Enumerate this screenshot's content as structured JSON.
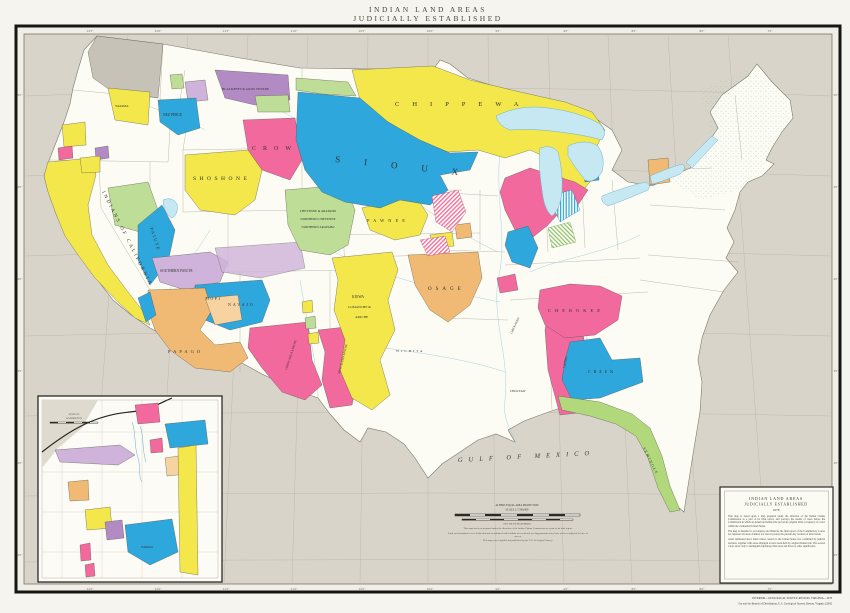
{
  "title": {
    "line1": "INDIAN LAND AREAS",
    "line2": "JUDICIALLY ESTABLISHED"
  },
  "map_labels": {
    "chippewa": "CHIPPEWA",
    "sioux": "SIOUX",
    "crow": "CROW",
    "shoshone": "SHOSHONE",
    "blackfeet": "BLACKFEET & GROS VENTRE",
    "nez_perce": "NEZ PERCE",
    "yakima": "YAKIMA",
    "pawnee": "PAWNEE",
    "cheyenne1": "CHEYENNE & ARAPAHO",
    "cheyenne2": "NORTHERN CHEYENNE",
    "cheyenne3": "NORTHERN ARAPAHO",
    "california": "INDIANS OF CALIFORNIA",
    "paiute": "PAIUTE",
    "southern_paiute": "SOUTHERN PAIUTE",
    "hopi": "HOPI",
    "navajo": "NAVAJO",
    "papago": "PAPAGO",
    "chiricahua": "CHIRICAHUA APACHE",
    "mescalero": "MESCALERO APACHE",
    "kiowa": "KIOWA",
    "comanche": "COMANCHE &",
    "apache": "APACHE",
    "wichita": "WICHITA",
    "osage": "OSAGE",
    "chickasaw": "CHICKASAW",
    "choctaw": "CHOCTAW",
    "caddo": "CADDO",
    "cherokee": "CHEROKEE",
    "creek": "CREEK",
    "seminole": "SEMINOLE",
    "gulf": "GULF OF MEXICO"
  },
  "inset": {
    "caption1": "STATE OF",
    "caption2": "WASHINGTON",
    "yakima": "YAKIMA"
  },
  "note_box": {
    "title1": "INDIAN LAND AREAS",
    "title2": "JUDICIALLY ESTABLISHED",
    "year": "1978",
    "paragraphs": [
      "This map is based upon a map prepared under the direction of the Indian Claims Commission as a part of its final report, and portrays the results of cases before the Commission in which an American Indian tribe proved its original tribal occupancy of a tract within the continental United States.",
      "The map is intended to accompany and illustrate the final report of the Commission; it does not represent all areas claimed, nor does it portray the present-day location of tribal lands.",
      "Areas delineated show lands whose cession to the United States was confirmed by judicial decision, together with areas adjudged to have been held by original Indian title. The several colors serve only to distinguish adjoining tribal areas and have no other significance."
    ]
  },
  "scale": {
    "caption1": "ALBERS EQUAL AREA PROJECTION",
    "caption2": "SCALE 1:7,500,000",
    "units": "100      0      100      200      300      400 MILES",
    "notes": [
      "This map has been prepared under the direction of the Indian Claims Commission as a part of its final report.",
      "Land area boundaries were delineated and coordinated with exhibits of record and are diagrammatic; they have not been adjusted to lines of survey.",
      "This map was compiled and published by the U.S. Geological Survey."
    ]
  },
  "credit": {
    "line1": "INTERIOR—GEOLOGICAL SURVEY, RESTON, VIRGINIA—1978",
    "line2": "For sale by Branch of Distribution, U.S. Geological Survey, Reston, Virginia 22092"
  },
  "graticule": {
    "lon": [
      "125°",
      "120°",
      "115°",
      "110°",
      "105°",
      "100°",
      "95°",
      "90°",
      "85°",
      "80°",
      "75°"
    ],
    "lat": [
      "50°",
      "45°",
      "40°",
      "35°",
      "30°",
      "25°"
    ]
  },
  "colors": {
    "ocean": "#d9d4c9",
    "land": "#fcfcf5",
    "region_yellow": "#f3e74b",
    "region_blue": "#2da7dc",
    "region_pink": "#f2699d",
    "region_orange": "#f0ba74",
    "region_green": "#bedd96",
    "region_purple": "#b28bc5",
    "lake_blue": "#c6e8f3"
  }
}
